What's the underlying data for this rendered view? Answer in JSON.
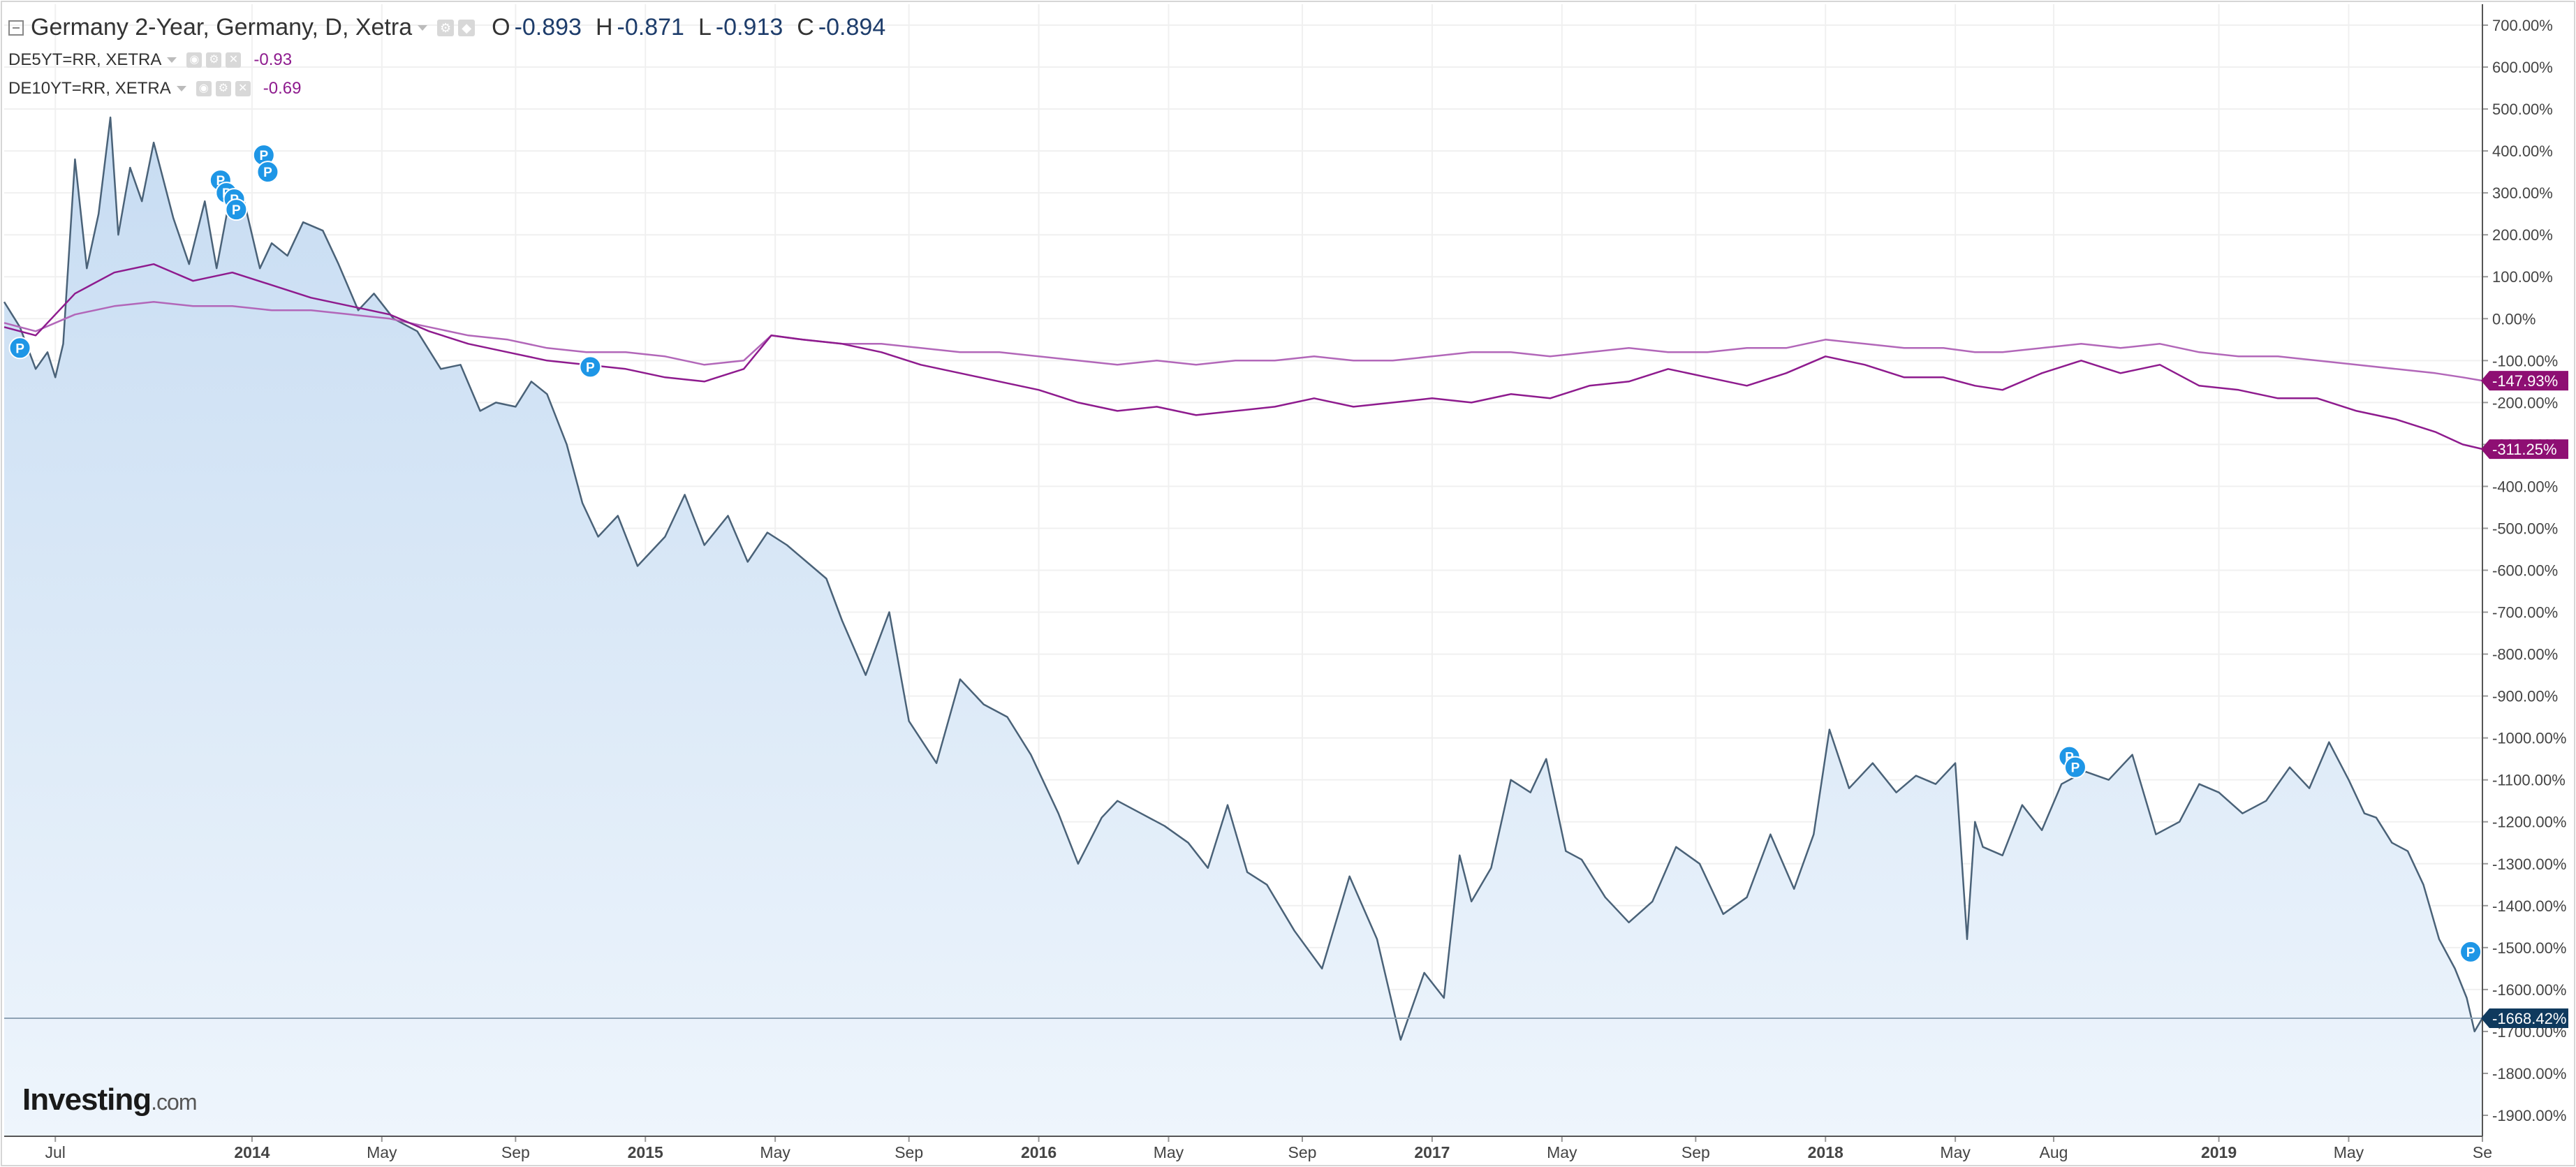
{
  "legend": {
    "main": {
      "title": "Germany 2-Year, Germany, D, Xetra",
      "o_label": "O",
      "o_value": "-0.893",
      "h_label": "H",
      "h_value": "-0.871",
      "l_label": "L",
      "l_value": "-0.913",
      "c_label": "C",
      "c_value": "-0.894"
    },
    "series2": {
      "label": "DE5YT=RR, XETRA",
      "value": "-0.93"
    },
    "series3": {
      "label": "DE10YT=RR, XETRA",
      "value": "-0.69"
    }
  },
  "logo": {
    "name": "Investing",
    "domain": ".com"
  },
  "colors": {
    "main_line": "#4a6278",
    "main_fill_top": "#c7dcf2",
    "main_fill_bottom": "#eef5fc",
    "de5y": "#b267b9",
    "de10y": "#8e1b8e",
    "main_badge": "#0f3a5e",
    "secondary_badge": "#8e0f73",
    "marker": "#1e96e6",
    "grid": "#f0f0f0",
    "axis_text": "#444444"
  },
  "chart_data": {
    "type": "line",
    "title": "Germany 2-Year, Germany, D, Xetra",
    "y_unit": "%",
    "ylim": [
      -1950,
      750
    ],
    "yticks": [
      "700.00%",
      "600.00%",
      "500.00%",
      "400.00%",
      "300.00%",
      "200.00%",
      "100.00%",
      "0.00%",
      "-100.00%",
      "-200.00%",
      "-300.00%",
      "-400.00%",
      "-500.00%",
      "-600.00%",
      "-700.00%",
      "-800.00%",
      "-900.00%",
      "-1000.00%",
      "-1100.00%",
      "-1200.00%",
      "-1300.00%",
      "-1400.00%",
      "-1500.00%",
      "-1600.00%",
      "-1700.00%",
      "-1800.00%",
      "-1900.00%"
    ],
    "ytick_values": [
      700,
      600,
      500,
      400,
      300,
      200,
      100,
      0,
      -100,
      -200,
      -300,
      -400,
      -500,
      -600,
      -700,
      -800,
      -900,
      -1000,
      -1100,
      -1200,
      -1300,
      -1400,
      -1500,
      -1600,
      -1700,
      -1800,
      -1900
    ],
    "xlim": [
      2013.37,
      2019.67
    ],
    "xticks": [
      {
        "label": "Jul",
        "value": 2013.5,
        "bold": false
      },
      {
        "label": "2014",
        "value": 2014.0,
        "bold": true
      },
      {
        "label": "May",
        "value": 2014.33,
        "bold": false
      },
      {
        "label": "Sep",
        "value": 2014.67,
        "bold": false
      },
      {
        "label": "2015",
        "value": 2015.0,
        "bold": true
      },
      {
        "label": "May",
        "value": 2015.33,
        "bold": false
      },
      {
        "label": "Sep",
        "value": 2015.67,
        "bold": false
      },
      {
        "label": "2016",
        "value": 2016.0,
        "bold": true
      },
      {
        "label": "May",
        "value": 2016.33,
        "bold": false
      },
      {
        "label": "Sep",
        "value": 2016.67,
        "bold": false
      },
      {
        "label": "2017",
        "value": 2017.0,
        "bold": true
      },
      {
        "label": "May",
        "value": 2017.33,
        "bold": false
      },
      {
        "label": "Sep",
        "value": 2017.67,
        "bold": false
      },
      {
        "label": "2018",
        "value": 2018.0,
        "bold": true
      },
      {
        "label": "May",
        "value": 2018.33,
        "bold": false
      },
      {
        "label": "Aug",
        "value": 2018.58,
        "bold": false
      },
      {
        "label": "2019",
        "value": 2019.0,
        "bold": true
      },
      {
        "label": "May",
        "value": 2019.33,
        "bold": false
      },
      {
        "label": "Se",
        "value": 2019.67,
        "bold": false
      }
    ],
    "series": [
      {
        "name": "Germany 2-Year",
        "last_label": "-1668.42%",
        "last_value": -1668.42,
        "x": [
          2013.37,
          2013.41,
          2013.45,
          2013.48,
          2013.5,
          2013.52,
          2013.55,
          2013.58,
          2013.61,
          2013.64,
          2013.66,
          2013.69,
          2013.72,
          2013.75,
          2013.8,
          2013.84,
          2013.88,
          2013.91,
          2013.95,
          2013.98,
          2014.02,
          2014.05,
          2014.09,
          2014.13,
          2014.18,
          2014.22,
          2014.27,
          2014.31,
          2014.36,
          2014.42,
          2014.48,
          2014.53,
          2014.58,
          2014.62,
          2014.67,
          2014.71,
          2014.75,
          2014.8,
          2014.84,
          2014.88,
          2014.93,
          2014.98,
          2015.05,
          2015.1,
          2015.15,
          2015.21,
          2015.26,
          2015.31,
          2015.36,
          2015.41,
          2015.46,
          2015.5,
          2015.56,
          2015.62,
          2015.67,
          2015.74,
          2015.8,
          2015.86,
          2015.92,
          2015.98,
          2016.05,
          2016.1,
          2016.16,
          2016.2,
          2016.26,
          2016.32,
          2016.38,
          2016.43,
          2016.48,
          2016.53,
          2016.58,
          2016.65,
          2016.72,
          2016.79,
          2016.86,
          2016.92,
          2016.98,
          2017.03,
          2017.07,
          2017.1,
          2017.15,
          2017.2,
          2017.25,
          2017.29,
          2017.34,
          2017.38,
          2017.44,
          2017.5,
          2017.56,
          2017.62,
          2017.68,
          2017.74,
          2017.8,
          2017.86,
          2017.92,
          2017.97,
          2018.01,
          2018.06,
          2018.12,
          2018.18,
          2018.23,
          2018.28,
          2018.33,
          2018.36,
          2018.38,
          2018.4,
          2018.45,
          2018.5,
          2018.55,
          2018.6,
          2018.66,
          2018.72,
          2018.78,
          2018.84,
          2018.9,
          2018.95,
          2019.0,
          2019.06,
          2019.12,
          2019.18,
          2019.23,
          2019.28,
          2019.33,
          2019.37,
          2019.4,
          2019.44,
          2019.48,
          2019.52,
          2019.56,
          2019.6,
          2019.63,
          2019.65,
          2019.67
        ],
        "y": [
          40,
          -20,
          -120,
          -80,
          -140,
          -60,
          380,
          120,
          250,
          480,
          200,
          360,
          280,
          420,
          240,
          130,
          280,
          120,
          320,
          280,
          120,
          180,
          150,
          230,
          210,
          130,
          20,
          60,
          0,
          -30,
          -120,
          -110,
          -220,
          -200,
          -210,
          -150,
          -180,
          -300,
          -440,
          -520,
          -470,
          -590,
          -520,
          -420,
          -540,
          -470,
          -580,
          -510,
          -540,
          -580,
          -620,
          -720,
          -850,
          -700,
          -960,
          -1060,
          -860,
          -920,
          -950,
          -1040,
          -1180,
          -1300,
          -1190,
          -1150,
          -1180,
          -1210,
          -1250,
          -1310,
          -1160,
          -1320,
          -1350,
          -1460,
          -1550,
          -1330,
          -1480,
          -1720,
          -1560,
          -1620,
          -1280,
          -1390,
          -1310,
          -1100,
          -1130,
          -1050,
          -1270,
          -1290,
          -1380,
          -1440,
          -1390,
          -1260,
          -1300,
          -1420,
          -1380,
          -1230,
          -1360,
          -1230,
          -980,
          -1120,
          -1060,
          -1130,
          -1090,
          -1110,
          -1060,
          -1480,
          -1200,
          -1260,
          -1280,
          -1160,
          -1220,
          -1110,
          -1080,
          -1100,
          -1040,
          -1230,
          -1200,
          -1110,
          -1130,
          -1180,
          -1150,
          -1070,
          -1120,
          -1010,
          -1100,
          -1180,
          -1190,
          -1250,
          -1270,
          -1350,
          -1480,
          -1550,
          -1620,
          -1700,
          -1668
        ]
      },
      {
        "name": "DE5YT=RR, XETRA",
        "last_label": "-147.93%",
        "last_value": -147.93,
        "x": [
          2013.37,
          2013.45,
          2013.55,
          2013.65,
          2013.75,
          2013.85,
          2013.95,
          2014.05,
          2014.15,
          2014.25,
          2014.35,
          2014.45,
          2014.55,
          2014.65,
          2014.75,
          2014.85,
          2014.95,
          2015.05,
          2015.15,
          2015.25,
          2015.32,
          2015.4,
          2015.5,
          2015.6,
          2015.7,
          2015.8,
          2015.9,
          2016.0,
          2016.1,
          2016.2,
          2016.3,
          2016.4,
          2016.5,
          2016.6,
          2016.7,
          2016.8,
          2016.9,
          2017.0,
          2017.1,
          2017.2,
          2017.3,
          2017.4,
          2017.5,
          2017.6,
          2017.7,
          2017.8,
          2017.9,
          2018.0,
          2018.1,
          2018.2,
          2018.3,
          2018.38,
          2018.45,
          2018.55,
          2018.65,
          2018.75,
          2018.85,
          2018.95,
          2019.05,
          2019.15,
          2019.25,
          2019.35,
          2019.45,
          2019.55,
          2019.62,
          2019.67
        ],
        "y": [
          -10,
          -30,
          10,
          30,
          40,
          30,
          30,
          20,
          20,
          10,
          0,
          -20,
          -40,
          -50,
          -70,
          -80,
          -80,
          -90,
          -110,
          -100,
          -40,
          -50,
          -60,
          -60,
          -70,
          -80,
          -80,
          -90,
          -100,
          -110,
          -100,
          -110,
          -100,
          -100,
          -90,
          -100,
          -100,
          -90,
          -80,
          -80,
          -90,
          -80,
          -70,
          -80,
          -80,
          -70,
          -70,
          -50,
          -60,
          -70,
          -70,
          -80,
          -80,
          -70,
          -60,
          -70,
          -60,
          -80,
          -90,
          -90,
          -100,
          -110,
          -120,
          -130,
          -140,
          -148
        ]
      },
      {
        "name": "DE10YT=RR, XETRA",
        "last_label": "-311.25%",
        "last_value": -311.25,
        "x": [
          2013.37,
          2013.45,
          2013.55,
          2013.65,
          2013.75,
          2013.85,
          2013.95,
          2014.05,
          2014.15,
          2014.25,
          2014.35,
          2014.45,
          2014.55,
          2014.65,
          2014.75,
          2014.85,
          2014.95,
          2015.05,
          2015.15,
          2015.25,
          2015.32,
          2015.4,
          2015.5,
          2015.6,
          2015.7,
          2015.8,
          2015.9,
          2016.0,
          2016.1,
          2016.2,
          2016.3,
          2016.4,
          2016.5,
          2016.6,
          2016.7,
          2016.8,
          2016.9,
          2017.0,
          2017.1,
          2017.2,
          2017.3,
          2017.4,
          2017.5,
          2017.6,
          2017.7,
          2017.8,
          2017.9,
          2018.0,
          2018.1,
          2018.2,
          2018.3,
          2018.38,
          2018.45,
          2018.55,
          2018.65,
          2018.75,
          2018.85,
          2018.95,
          2019.05,
          2019.15,
          2019.25,
          2019.35,
          2019.45,
          2019.55,
          2019.62,
          2019.67
        ],
        "y": [
          -20,
          -40,
          60,
          110,
          130,
          90,
          110,
          80,
          50,
          30,
          10,
          -30,
          -60,
          -80,
          -100,
          -110,
          -120,
          -140,
          -150,
          -120,
          -40,
          -50,
          -60,
          -80,
          -110,
          -130,
          -150,
          -170,
          -200,
          -220,
          -210,
          -230,
          -220,
          -210,
          -190,
          -210,
          -200,
          -190,
          -200,
          -180,
          -190,
          -160,
          -150,
          -120,
          -140,
          -160,
          -130,
          -90,
          -110,
          -140,
          -140,
          -160,
          -170,
          -130,
          -100,
          -130,
          -110,
          -160,
          -170,
          -190,
          -190,
          -220,
          -240,
          -270,
          -300,
          -311
        ]
      }
    ],
    "markers": [
      {
        "label": "P",
        "x": 2013.41,
        "y": -70
      },
      {
        "label": "P",
        "x": 2013.92,
        "y": 330
      },
      {
        "label": "P",
        "x": 2013.935,
        "y": 300
      },
      {
        "label": "P",
        "x": 2013.955,
        "y": 285
      },
      {
        "label": "P",
        "x": 2013.96,
        "y": 260
      },
      {
        "label": "P",
        "x": 2014.03,
        "y": 390
      },
      {
        "label": "P",
        "x": 2014.04,
        "y": 350
      },
      {
        "label": "P",
        "x": 2014.86,
        "y": -115
      },
      {
        "label": "P",
        "x": 2018.62,
        "y": -1045
      },
      {
        "label": "P",
        "x": 2018.635,
        "y": -1070
      },
      {
        "label": "P",
        "x": 2019.64,
        "y": -1510
      }
    ]
  }
}
